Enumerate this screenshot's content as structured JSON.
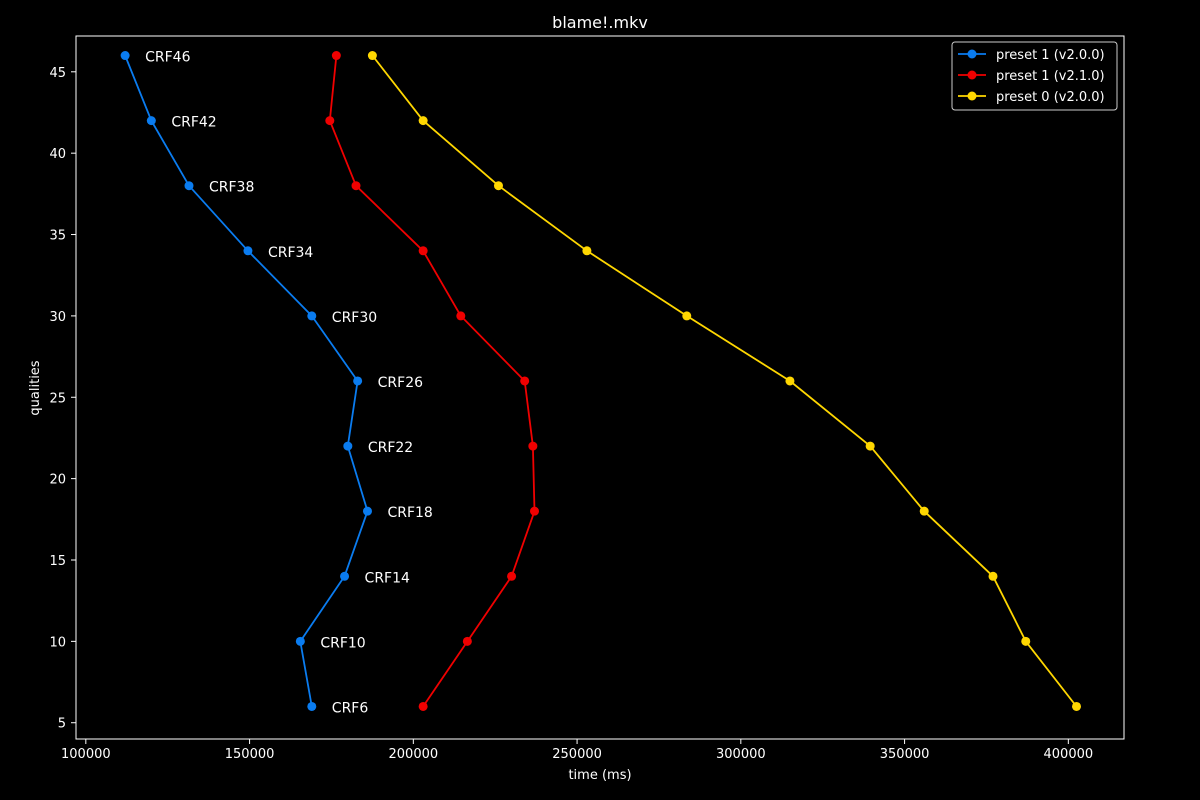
{
  "chart_data": {
    "type": "line",
    "title": "blame!.mkv",
    "xlabel": "time (ms)",
    "ylabel": "qualities",
    "xlim": [
      97000,
      417000
    ],
    "ylim": [
      4,
      47.2
    ],
    "xticks": [
      100000,
      150000,
      200000,
      250000,
      300000,
      350000,
      400000
    ],
    "xtick_labels": [
      "100000",
      "150000",
      "200000",
      "250000",
      "300000",
      "350000",
      "400000"
    ],
    "yticks": [
      5,
      10,
      15,
      20,
      25,
      30,
      35,
      40,
      45
    ],
    "ytick_labels": [
      "5",
      "10",
      "15",
      "20",
      "25",
      "30",
      "35",
      "40",
      "45"
    ],
    "grid": false,
    "legend_position": "top-right",
    "background": "#000000",
    "foreground": "#ffffff",
    "y": [
      46,
      42,
      38,
      34,
      30,
      26,
      22,
      18,
      14,
      10,
      6
    ],
    "series": [
      {
        "name": "preset 1 (v2.0.0)",
        "color": "#0a7cf0",
        "x": [
          112000,
          120000,
          131500,
          149500,
          169000,
          183000,
          180000,
          186000,
          179000,
          165500,
          169000
        ]
      },
      {
        "name": "preset 1 (v2.1.0)",
        "color": "#f00000",
        "x": [
          176500,
          174500,
          182500,
          203000,
          214500,
          234000,
          236500,
          237000,
          230000,
          216500,
          203000
        ]
      },
      {
        "name": "preset 0 (v2.0.0)",
        "color": "#ffd700",
        "x": [
          187500,
          203000,
          226000,
          253000,
          283500,
          315000,
          339500,
          356000,
          377000,
          387000,
          402500
        ]
      }
    ],
    "annotations": [
      {
        "text": "CRF46",
        "x": 112000,
        "y": 46
      },
      {
        "text": "CRF42",
        "x": 120000,
        "y": 42
      },
      {
        "text": "CRF38",
        "x": 131500,
        "y": 38
      },
      {
        "text": "CRF34",
        "x": 149500,
        "y": 34
      },
      {
        "text": "CRF30",
        "x": 169000,
        "y": 30
      },
      {
        "text": "CRF26",
        "x": 183000,
        "y": 26
      },
      {
        "text": "CRF22",
        "x": 180000,
        "y": 22
      },
      {
        "text": "CRF18",
        "x": 186000,
        "y": 18
      },
      {
        "text": "CRF14",
        "x": 179000,
        "y": 14
      },
      {
        "text": "CRF10",
        "x": 165500,
        "y": 10
      },
      {
        "text": "CRF6",
        "x": 169000,
        "y": 6
      }
    ]
  }
}
